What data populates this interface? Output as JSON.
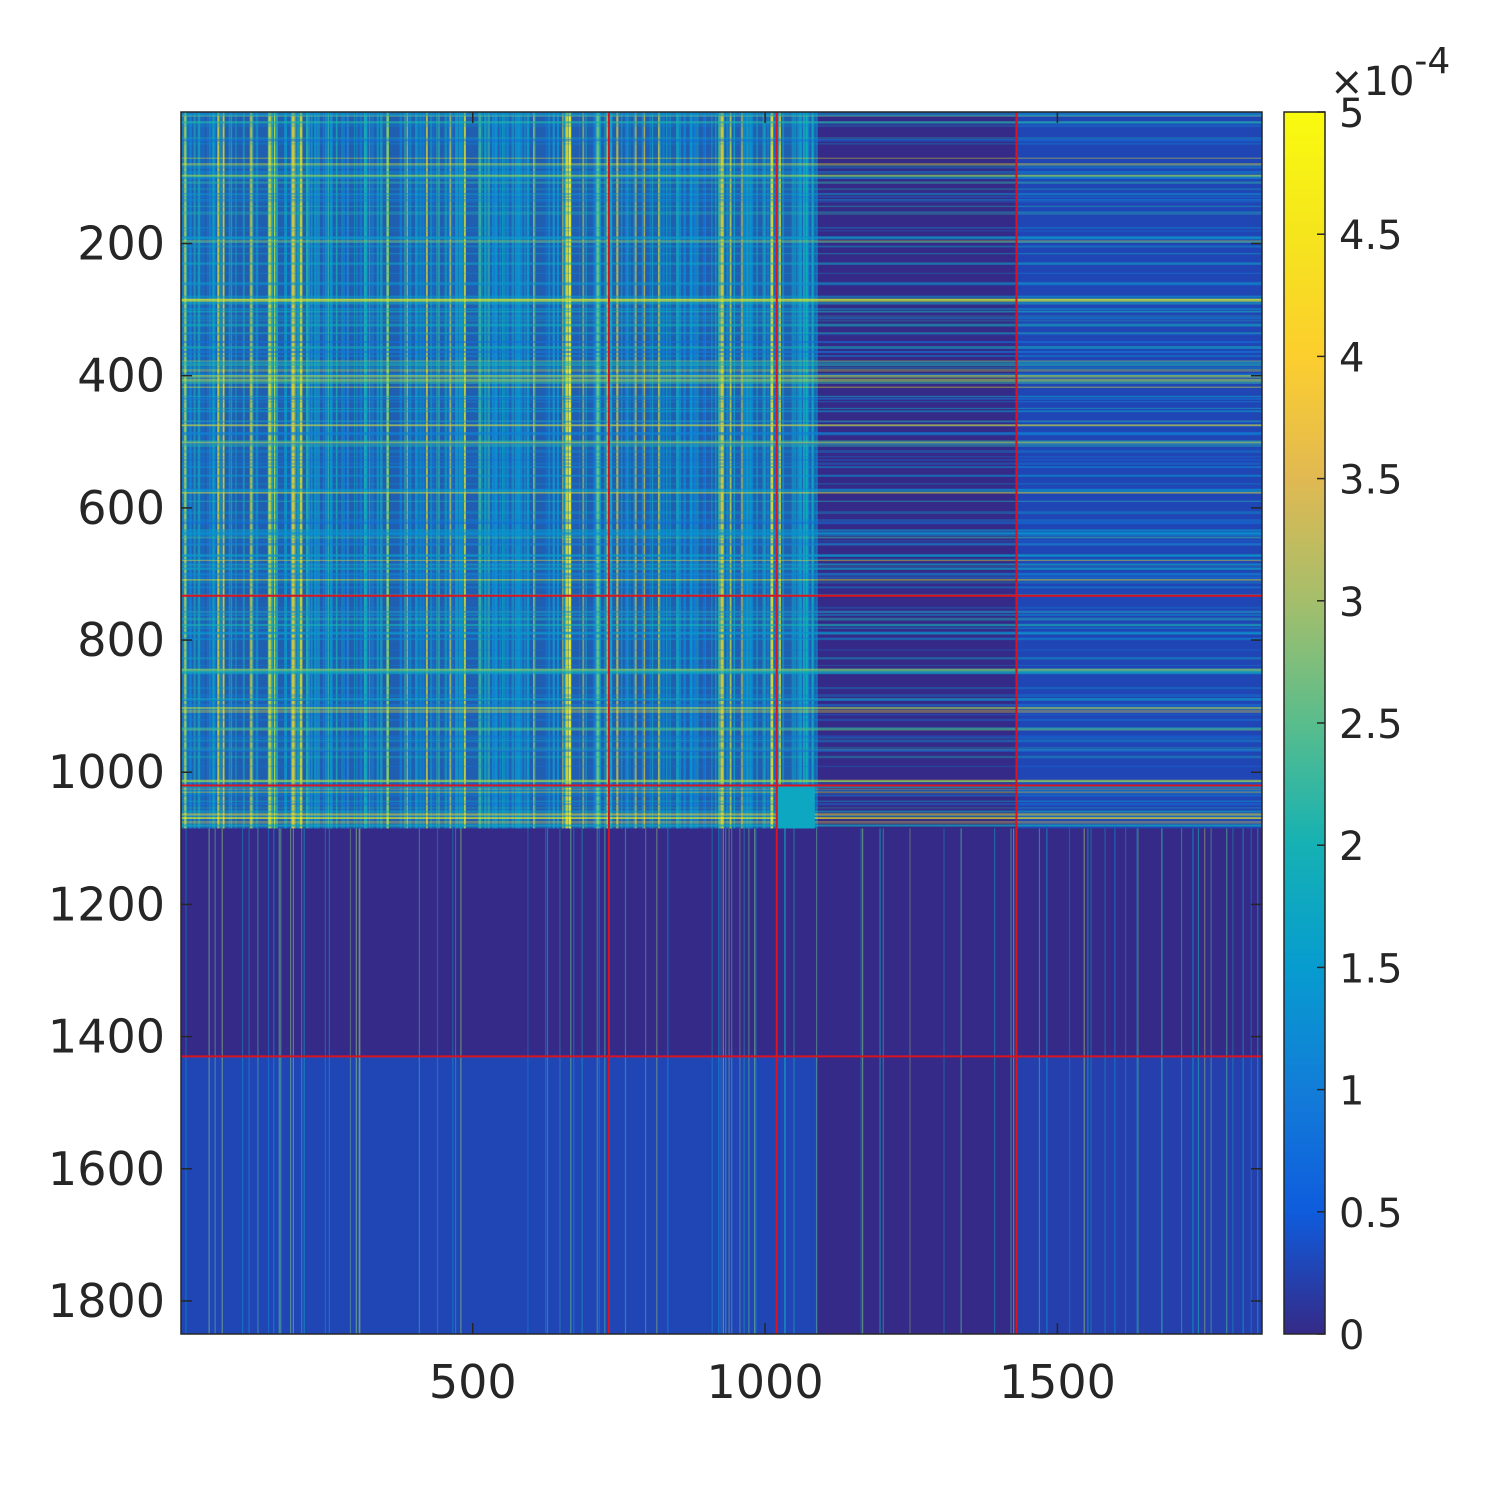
{
  "chart_data": {
    "type": "heatmap",
    "title": "",
    "xlabel": "",
    "ylabel": "",
    "xlim": [
      1,
      1850
    ],
    "ylim": [
      1,
      1850
    ],
    "x_ticks": [
      500,
      1000,
      1500
    ],
    "y_ticks": [
      200,
      400,
      600,
      800,
      1000,
      1200,
      1400,
      1600,
      1800
    ],
    "x_tick_labels": [
      "500",
      "1000",
      "1500"
    ],
    "y_tick_labels": [
      "200",
      "400",
      "600",
      "800",
      "1000",
      "1200",
      "1400",
      "1600",
      "1800"
    ],
    "colormap": "parula",
    "color_limits": [
      0,
      0.0005
    ],
    "colorbar": {
      "ticks": [
        0,
        0.5,
        1,
        1.5,
        2,
        2.5,
        3,
        3.5,
        4,
        4.5,
        5
      ],
      "tick_labels": [
        "0",
        "0.5",
        "1",
        "1.5",
        "2",
        "2.5",
        "3",
        "3.5",
        "4",
        "4.5",
        "5"
      ],
      "exponent_multiplier": "×",
      "exponent_base": "10",
      "exponent_power": "-4",
      "position": "right"
    },
    "block_boundaries": [
      733,
      1020,
      1430
    ],
    "boundary_color": "#d9141e",
    "highlight_regions": [
      {
        "rows": [
          1,
          1085
        ],
        "cols": [
          1,
          1090
        ],
        "level": 0.00012,
        "note": "dense upper-left cluster"
      },
      {
        "rows": [
          1020,
          1085
        ],
        "cols": [
          1020,
          1085
        ],
        "level": 0.00015,
        "note": "bright diagonal block"
      },
      {
        "rows": [
          1,
          1085
        ],
        "cols": [
          1430,
          1850
        ],
        "level": 5e-05
      },
      {
        "rows": [
          1430,
          1850
        ],
        "cols": [
          1,
          1090
        ],
        "level": 5e-05
      },
      {
        "rows": [
          1430,
          1850
        ],
        "cols": [
          1430,
          1850
        ],
        "level": 4e-05
      }
    ],
    "background_level": 0.0
  }
}
